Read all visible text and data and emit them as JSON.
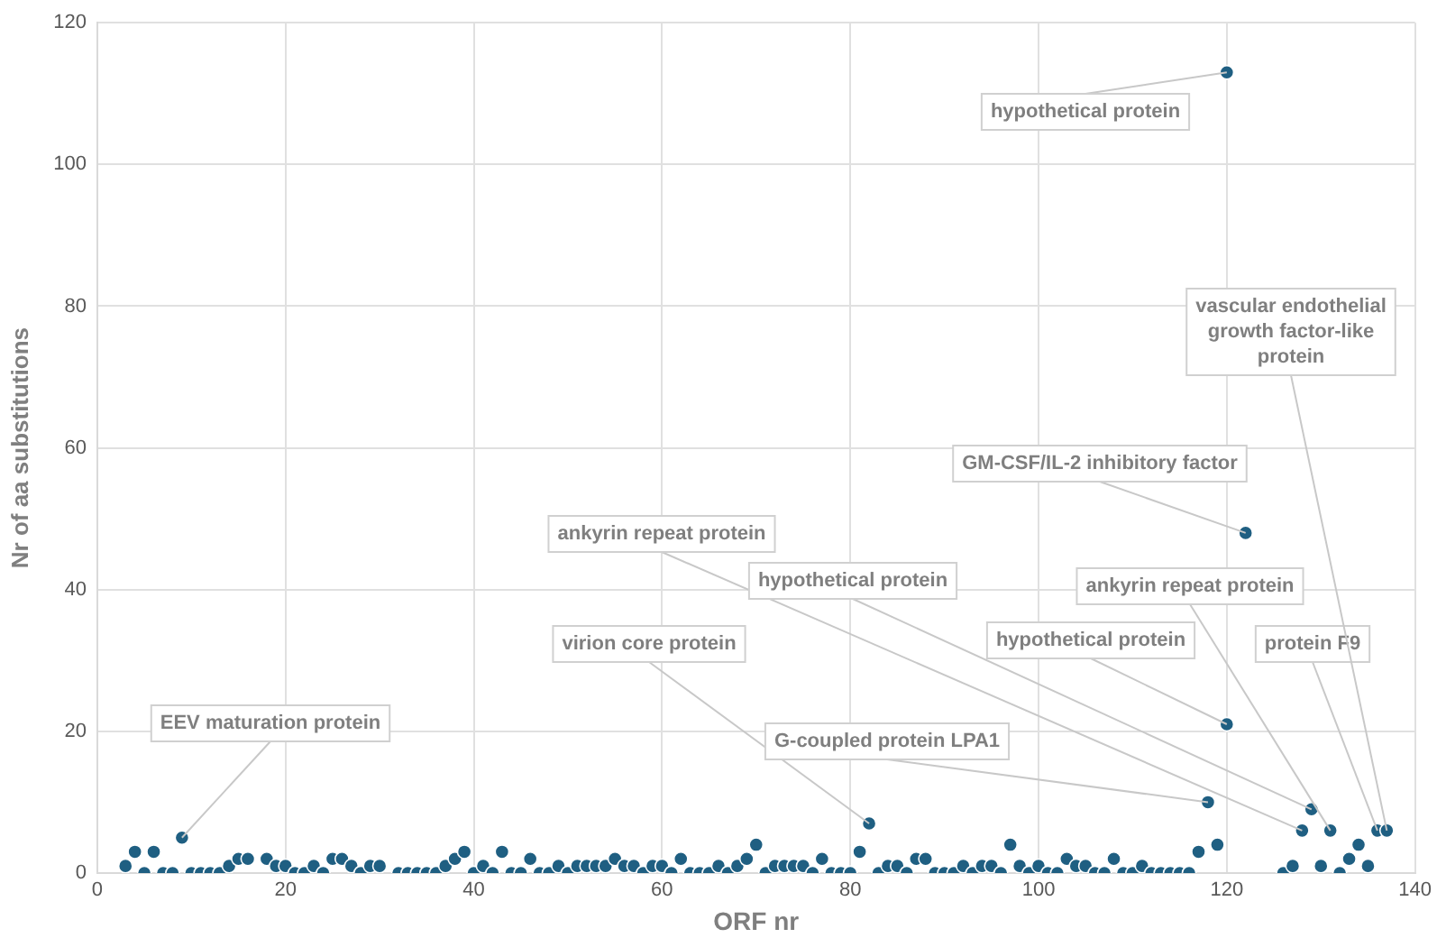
{
  "chart_data": {
    "type": "scatter",
    "xlabel": "ORF nr",
    "ylabel": "Nr of aa substitutions",
    "xlim": [
      0,
      140
    ],
    "xticks": [
      0,
      20,
      40,
      60,
      80,
      100,
      120,
      140
    ],
    "ylim": [
      0,
      120
    ],
    "yticks": [
      0,
      20,
      40,
      60,
      80,
      100,
      120
    ],
    "grid": true,
    "marker": "circle",
    "series": [
      {
        "color": "#1f5f82",
        "x": [
          3,
          4,
          5,
          6,
          7,
          8,
          9,
          10,
          11,
          12,
          13,
          14,
          15,
          16,
          18,
          19,
          20,
          21,
          22,
          23,
          24,
          25,
          26,
          27,
          28,
          29,
          30,
          32,
          33,
          34,
          35,
          36,
          37,
          38,
          39,
          40,
          41,
          42,
          43,
          44,
          45,
          46,
          47,
          48,
          49,
          50,
          51,
          52,
          53,
          54,
          55,
          56,
          57,
          58,
          59,
          60,
          61,
          62,
          63,
          64,
          65,
          66,
          67,
          68,
          69,
          70,
          71,
          72,
          73,
          74,
          75,
          76,
          77,
          78,
          79,
          80,
          81,
          82,
          83,
          84,
          85,
          86,
          87,
          88,
          89,
          90,
          91,
          92,
          93,
          94,
          95,
          96,
          97,
          98,
          99,
          100,
          101,
          102,
          103,
          104,
          105,
          106,
          107,
          108,
          109,
          110,
          111,
          112,
          113,
          114,
          115,
          116,
          117,
          118,
          119,
          120,
          120,
          122,
          126,
          127,
          128,
          129,
          130,
          131,
          132,
          133,
          134,
          135,
          136,
          137
        ],
        "values": [
          1,
          3,
          0,
          3,
          0,
          0,
          5,
          0,
          0,
          0,
          0,
          1,
          2,
          2,
          2,
          1,
          1,
          0,
          0,
          1,
          0,
          2,
          2,
          1,
          0,
          1,
          1,
          0,
          0,
          0,
          0,
          0,
          1,
          2,
          3,
          0,
          1,
          0,
          3,
          0,
          0,
          2,
          0,
          0,
          1,
          0,
          1,
          1,
          1,
          1,
          2,
          1,
          1,
          0,
          1,
          1,
          0,
          2,
          0,
          0,
          0,
          1,
          0,
          1,
          2,
          4,
          0,
          1,
          1,
          1,
          1,
          0,
          2,
          0,
          0,
          0,
          3,
          7,
          0,
          1,
          1,
          0,
          2,
          2,
          0,
          0,
          0,
          1,
          0,
          1,
          1,
          0,
          4,
          1,
          0,
          1,
          0,
          0,
          2,
          1,
          1,
          0,
          0,
          2,
          0,
          0,
          1,
          0,
          0,
          0,
          0,
          0,
          3,
          10,
          4,
          21,
          113,
          48,
          0,
          1,
          6,
          9,
          1,
          6,
          0,
          2,
          4,
          1,
          6,
          6
        ]
      }
    ],
    "annotations": [
      {
        "text": "EEV maturation protein",
        "x": 9,
        "y": 5
      },
      {
        "text": "virion core protein",
        "x": 82,
        "y": 7
      },
      {
        "text": "ankyrin repeat protein",
        "x": 128,
        "y": 6
      },
      {
        "text": "hypothetical protein",
        "x": 129,
        "y": 9
      },
      {
        "text": "G-coupled protein LPA1",
        "x": 118,
        "y": 10
      },
      {
        "text": "hypothetical protein",
        "x": 120,
        "y": 21
      },
      {
        "text": "GM-CSF/IL-2 inhibitory factor",
        "x": 122,
        "y": 48
      },
      {
        "text": "ankyrin repeat protein",
        "x": 131,
        "y": 6
      },
      {
        "text": "protein F9",
        "x": 136,
        "y": 6
      },
      {
        "text": "vascular endothelial growth factor-like protein",
        "x": 137,
        "y": 6
      },
      {
        "text": "hypothetical protein",
        "x": 120,
        "y": 113
      }
    ]
  }
}
